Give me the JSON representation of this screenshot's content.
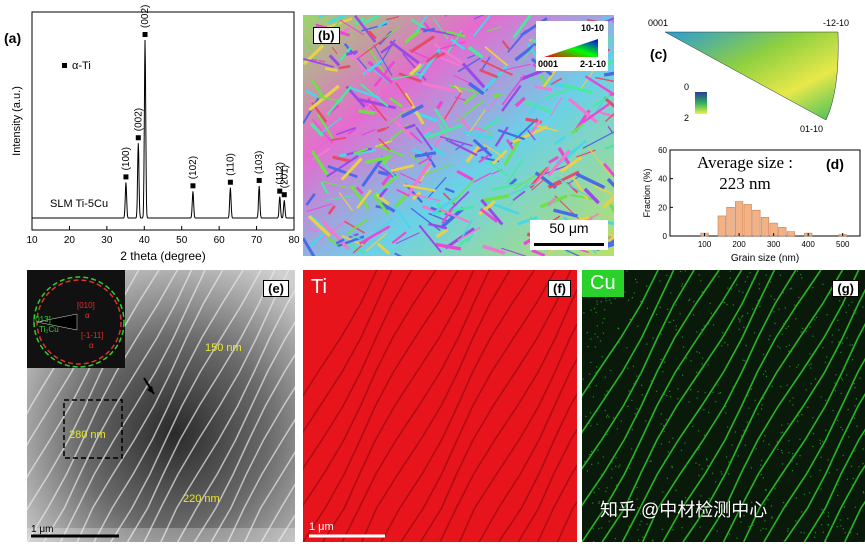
{
  "panel_a": {
    "label": "(a)",
    "legend": "α-Ti",
    "sample": "SLM Ti-5Cu",
    "ylabel": "Intensity (a.u.)",
    "xlabel": "2 theta (degree)",
    "xticks": [
      "10",
      "20",
      "30",
      "40",
      "50",
      "60",
      "70",
      "80"
    ],
    "peaks": [
      {
        "two_theta": 35.1,
        "rel_intensity": 0.2,
        "hkl": "(100)"
      },
      {
        "two_theta": 38.4,
        "rel_intensity": 0.42,
        "hkl": "(002)"
      },
      {
        "two_theta": 40.2,
        "rel_intensity": 1.0,
        "hkl": "(002)"
      },
      {
        "two_theta": 53.0,
        "rel_intensity": 0.15,
        "hkl": "(102)"
      },
      {
        "two_theta": 63.0,
        "rel_intensity": 0.17,
        "hkl": "(110)"
      },
      {
        "two_theta": 70.7,
        "rel_intensity": 0.18,
        "hkl": "(103)"
      },
      {
        "two_theta": 76.2,
        "rel_intensity": 0.12,
        "hkl": "(112)"
      },
      {
        "two_theta": 77.4,
        "rel_intensity": 0.1,
        "hkl": "(201)"
      }
    ],
    "color": "#000000"
  },
  "panel_b": {
    "label": "(b)",
    "key_top": "10-10",
    "key_left": "0001",
    "key_right": "2-1-10",
    "scalebar": "50 μm"
  },
  "panel_c": {
    "label": "(c)",
    "corner_left": "0001",
    "corner_right": "-12-10",
    "corner_bottom": "01-10",
    "scale_min": "0",
    "scale_max": "2"
  },
  "panel_d": {
    "label": "(d)",
    "title_line1": "Average size :",
    "title_line2": "223 nm",
    "ylabel": "Fraction (%)",
    "xlabel": "Grain size (nm)",
    "yticks": [
      "0",
      "20",
      "40",
      "60"
    ],
    "xticks": [
      "100",
      "200",
      "300",
      "400",
      "500"
    ],
    "bar_color": "#f4b183",
    "chart_data": {
      "type": "bar",
      "categories": [
        100,
        150,
        175,
        200,
        225,
        250,
        275,
        300,
        325,
        350,
        400,
        500
      ],
      "values": [
        2,
        14,
        20,
        24,
        22,
        18,
        13,
        9,
        6,
        3,
        2,
        1
      ],
      "xlabel": "Grain size (nm)",
      "ylabel": "Fraction (%)",
      "xlim": [
        0,
        550
      ],
      "ylim": [
        0,
        60
      ]
    }
  },
  "panel_e": {
    "label": "(e)",
    "saed_labels": [
      "[010]",
      "α",
      "[013]",
      "Ti₂Cu",
      "[-1-11]",
      "α"
    ],
    "annotations": [
      "150 nm",
      "280 nm",
      "220 nm"
    ],
    "scalebar": "1 μm"
  },
  "panel_f": {
    "label": "(f)",
    "element": "Ti",
    "scalebar": "1 μm",
    "color": "#e8141c"
  },
  "panel_g": {
    "label": "(g)",
    "element": "Cu",
    "color": "#2bd12b"
  },
  "watermark": "知乎 @中材检测中心"
}
